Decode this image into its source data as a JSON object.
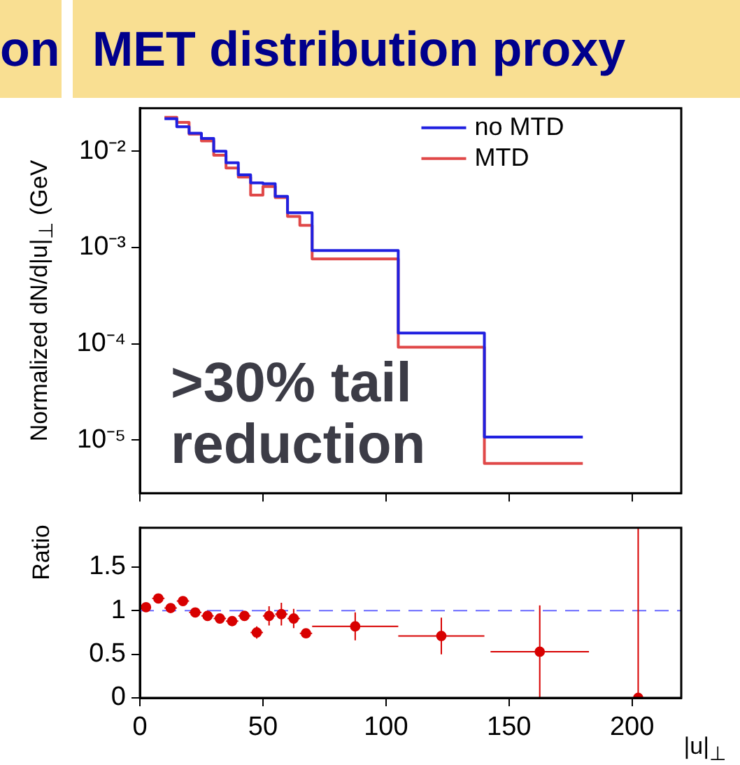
{
  "chart_data": [
    {
      "type": "histogram",
      "title": "MET distribution proxy",
      "ylabel": "Normalized dN/d|u|$_{⊥}$ (GeV",
      "annotations": [
        ">30% tail reduction",
        "on"
      ],
      "bins": [
        10,
        15,
        20,
        25,
        30,
        35,
        40,
        45,
        50,
        55,
        60,
        65,
        70,
        105,
        140,
        180
      ],
      "series": [
        {
          "name": "no MTD",
          "color": "#2020e0",
          "values": [
            0.0218,
            0.018,
            0.0154,
            0.0136,
            0.01,
            0.0076,
            0.0057,
            0.0047,
            0.0046,
            0.0034,
            0.0023,
            0.0023,
            0.00093,
            0.000129,
            1.07e-05
          ]
        },
        {
          "name": "MTD",
          "color": "#e04848",
          "values": [
            0.0225,
            0.02,
            0.0151,
            0.0128,
            0.0091,
            0.0067,
            0.0054,
            0.0035,
            0.0043,
            0.0033,
            0.0021,
            0.0017,
            0.00076,
            9.2e-05,
            5.7e-06
          ]
        }
      ],
      "log": "y",
      "xlim": [
        0,
        220
      ],
      "xticks": [
        0,
        50,
        100,
        150,
        200
      ],
      "ylim": [
        2.8e-06,
        0.028
      ],
      "yticks": [
        {
          "value": 1e-05,
          "label": "10⁻⁵"
        },
        {
          "value": 0.0001,
          "label": "10⁻⁴"
        },
        {
          "value": 0.001,
          "label": "10⁻³"
        },
        {
          "value": 0.01,
          "label": "10⁻²"
        }
      ],
      "tick_labels": "y",
      "legend": "top right"
    },
    {
      "type": "scatter",
      "ylabel": "Ratio",
      "xlabel": "|u|$_{⊥}$",
      "x": [
        2.5,
        7.5,
        12.5,
        17.5,
        22.5,
        27.5,
        32.5,
        37.5,
        42.5,
        47.5,
        52.5,
        57.5,
        62.5,
        67.5,
        87.5,
        122.5,
        162.5,
        202.5
      ],
      "values": [
        1.04,
        1.14,
        1.03,
        1.11,
        0.98,
        0.94,
        0.91,
        0.88,
        0.94,
        0.75,
        0.94,
        0.96,
        0.91,
        0.74,
        0.82,
        0.71,
        0.53,
        0
      ],
      "errors": [
        0.03,
        0.03,
        0.03,
        0.03,
        0.03,
        0.03,
        0.03,
        0.04,
        0.03,
        0.07,
        0.11,
        0.13,
        0.11,
        0.05,
        0.16,
        0.21,
        0.53,
        [
          0,
          1.95
        ]
      ],
      "xerrors": [
        null,
        2.5,
        2.5,
        2.5,
        2.5,
        2.5,
        2.5,
        2.5,
        2.5,
        2.5,
        2.5,
        2.5,
        2.5,
        2.5,
        17.5,
        17.5,
        20,
        null
      ],
      "color": "#d80000",
      "marker": "circle",
      "xlim": [
        0,
        220
      ],
      "xticks": [
        0,
        50,
        100,
        150,
        200
      ],
      "ylim": [
        0,
        1.95
      ],
      "yticks": [
        0,
        0.5,
        1,
        1.5
      ],
      "ref_lines": [
        {
          "axis": "y",
          "value": 1,
          "color": "#6a6aff",
          "line_style": "dashed"
        }
      ]
    }
  ]
}
